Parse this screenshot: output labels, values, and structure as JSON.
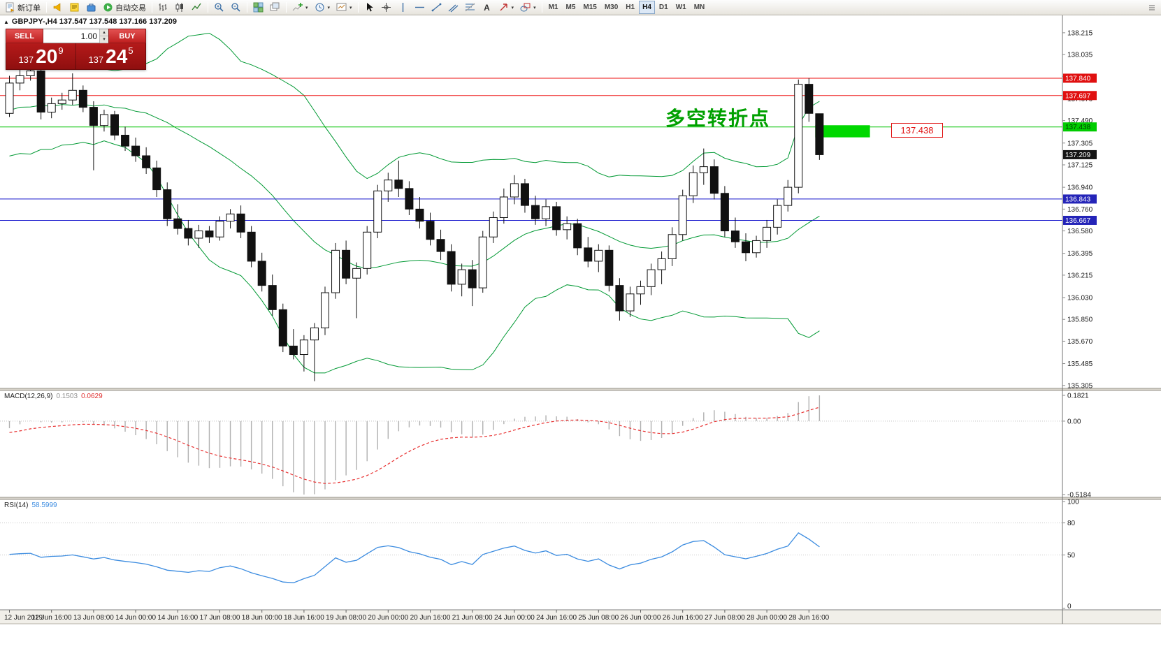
{
  "toolbar": {
    "new_order": "新订单",
    "autotrading": "自动交易",
    "icon_buttons": [
      {
        "name": "alerts-button",
        "icon": "megaphone-icon"
      },
      {
        "name": "metaeditor-button",
        "icon": "editor-icon"
      },
      {
        "name": "market-button",
        "icon": "market-icon"
      }
    ],
    "chart_buttons": [
      {
        "name": "bar-chart-button",
        "icon": "bar-chart-icon"
      },
      {
        "name": "candlestick-chart-button",
        "icon": "candles-icon"
      },
      {
        "name": "line-chart-button",
        "icon": "line-chart-icon"
      }
    ],
    "zoom_buttons": [
      {
        "name": "zoom-in-button",
        "icon": "zoom-in-icon"
      },
      {
        "name": "zoom-out-button",
        "icon": "zoom-out-icon"
      }
    ],
    "window_buttons": [
      {
        "name": "tile-windows-button",
        "icon": "tile-windows-icon"
      },
      {
        "name": "cascade-windows-button",
        "icon": "arrange-icon"
      }
    ],
    "insert_buttons": [
      {
        "name": "indicators-button",
        "icon": "indicators-icon",
        "caret": true
      },
      {
        "name": "periods-button",
        "icon": "clock-icon",
        "caret": true
      },
      {
        "name": "templates-button",
        "icon": "template-icon",
        "caret": true
      }
    ],
    "draw_buttons": [
      {
        "name": "cursor-button",
        "icon": "cursor-icon"
      },
      {
        "name": "crosshair-button",
        "icon": "crosshair-icon"
      },
      {
        "name": "vertical-line-button",
        "icon": "vline-icon"
      },
      {
        "name": "horizontal-line-button",
        "icon": "hline-icon"
      },
      {
        "name": "trendline-button",
        "icon": "trendline-icon"
      },
      {
        "name": "channel-button",
        "icon": "channel-icon"
      },
      {
        "name": "fibonacci-button",
        "icon": "fibo-icon"
      },
      {
        "name": "text-button",
        "icon": "text-icon"
      },
      {
        "name": "arrows-button",
        "icon": "arrow-icon",
        "caret": true
      },
      {
        "name": "shapes-button",
        "icon": "shapes-icon",
        "caret": true
      }
    ],
    "timeframes": [
      "M1",
      "M5",
      "M15",
      "M30",
      "H1",
      "H4",
      "D1",
      "W1",
      "MN"
    ],
    "active_timeframe": "H4"
  },
  "chart": {
    "symbol_line": "GBPJPY-,H4 137.547 137.548 137.166 137.209",
    "order_panel": {
      "sell_label": "SELL",
      "buy_label": "BUY",
      "volume": "1.00",
      "sell_price_big": "137",
      "sell_price_main": "20",
      "sell_price_sup": "9",
      "buy_price_big": "137",
      "buy_price_main": "24",
      "buy_price_sup": "5"
    },
    "annotation_text": "多空转折点",
    "price_callout": "137.438",
    "current_price_tag": {
      "text": "137.209",
      "price": 137.209,
      "bg": "#141414",
      "fg": "#ffffff"
    },
    "hlines": [
      {
        "price": 137.84,
        "text": "137.840",
        "color": "#ee1111",
        "tag_bg": "#e01010",
        "tag_fg": "#ffffff"
      },
      {
        "price": 137.697,
        "text": "137.697",
        "color": "#ee1111",
        "tag_bg": "#e01010",
        "tag_fg": "#ffffff"
      },
      {
        "price": 137.438,
        "text": "137.438",
        "color": "#00c400",
        "tag_bg": "#00cc00",
        "tag_fg": "#004000"
      },
      {
        "price": 136.843,
        "text": "136.843",
        "color": "#1515cc",
        "tag_bg": "#2424b8",
        "tag_fg": "#ffffff"
      },
      {
        "price": 136.667,
        "text": "136.667",
        "color": "#1515cc",
        "tag_bg": "#2424b8",
        "tag_fg": "#ffffff"
      }
    ],
    "rectangle": {
      "price_top": 137.452,
      "price_bottom": 137.352,
      "x_start_candle": 76.6,
      "x_end_candle": 81.8,
      "color": "#00d800"
    },
    "axis_prices": [
      "138.215",
      "138.035",
      "137.855",
      "137.670",
      "137.490",
      "137.305",
      "137.125",
      "136.940",
      "136.760",
      "136.580",
      "136.395",
      "136.215",
      "136.030",
      "135.850",
      "135.670",
      "135.485",
      "135.305"
    ]
  },
  "macd": {
    "name": "MACD(12,26,9)",
    "value_main": "0.1503",
    "value_signal": "0.0629",
    "axis_labels": [
      "0.1821",
      "0.00",
      "-0.5184"
    ],
    "axis_max": 0.1821,
    "axis_min": -0.5184,
    "histogram_color": "#b0b0b0",
    "signal_color": "#e83030"
  },
  "rsi": {
    "name": "RSI(14)",
    "value": "58.5999",
    "axis_labels": [
      "100",
      "80",
      "50",
      "0"
    ],
    "levels": [
      80,
      50
    ],
    "line_color": "#3c8ce0"
  },
  "chart_data": {
    "type": "candlestick",
    "symbol": "GBPJPY-",
    "timeframe": "H4",
    "price_view_max": 138.37,
    "price_view_min": 135.28,
    "candles_per_label": 4,
    "bollinger": {
      "period": 20,
      "deviation": 2,
      "color": "#009933"
    },
    "time_labels": [
      "12 Jun 2019",
      "12 Jun 16:00",
      "13 Jun 08:00",
      "14 Jun 00:00",
      "14 Jun 16:00",
      "17 Jun 08:00",
      "18 Jun 00:00",
      "18 Jun 16:00",
      "19 Jun 08:00",
      "20 Jun 00:00",
      "20 Jun 16:00",
      "21 Jun 08:00",
      "24 Jun 00:00",
      "24 Jun 16:00",
      "25 Jun 08:00",
      "26 Jun 00:00",
      "26 Jun 16:00",
      "27 Jun 08:00",
      "28 Jun 00:00",
      "28 Jun 16:00"
    ],
    "prehistory_closes": [
      138.0,
      137.3,
      137.95,
      137.25,
      137.9,
      137.3,
      137.95,
      137.35,
      137.85,
      137.3,
      137.8,
      137.35,
      137.85,
      137.45,
      137.75,
      137.35,
      137.8,
      137.4,
      137.7,
      137.4,
      137.7,
      137.45,
      137.65,
      137.45,
      137.6,
      137.5
    ],
    "ohlc": [
      [
        137.55,
        137.86,
        137.52,
        137.8
      ],
      [
        137.8,
        137.92,
        137.74,
        137.86
      ],
      [
        137.86,
        137.97,
        137.82,
        137.9
      ],
      [
        137.9,
        137.93,
        137.5,
        137.56
      ],
      [
        137.56,
        137.68,
        137.51,
        137.63
      ],
      [
        137.63,
        137.72,
        137.58,
        137.66
      ],
      [
        137.66,
        137.88,
        137.62,
        137.74
      ],
      [
        137.74,
        137.78,
        137.56,
        137.6
      ],
      [
        137.6,
        137.65,
        137.08,
        137.45
      ],
      [
        137.45,
        137.58,
        137.4,
        137.54
      ],
      [
        137.54,
        137.57,
        137.33,
        137.37
      ],
      [
        137.37,
        137.44,
        137.24,
        137.28
      ],
      [
        137.28,
        137.35,
        137.15,
        137.2
      ],
      [
        137.2,
        137.27,
        137.05,
        137.1
      ],
      [
        137.1,
        137.16,
        136.86,
        136.92
      ],
      [
        136.92,
        136.98,
        136.62,
        136.68
      ],
      [
        136.68,
        136.8,
        136.55,
        136.6
      ],
      [
        136.6,
        136.67,
        136.46,
        136.52
      ],
      [
        136.52,
        136.63,
        136.44,
        136.58
      ],
      [
        136.58,
        136.62,
        136.48,
        136.53
      ],
      [
        136.53,
        136.7,
        136.5,
        136.66
      ],
      [
        136.66,
        136.76,
        136.6,
        136.72
      ],
      [
        136.72,
        136.79,
        136.52,
        136.57
      ],
      [
        136.57,
        136.62,
        136.28,
        136.33
      ],
      [
        136.33,
        136.4,
        136.08,
        136.13
      ],
      [
        136.13,
        136.22,
        135.88,
        135.93
      ],
      [
        135.93,
        135.98,
        135.58,
        135.63
      ],
      [
        135.63,
        135.77,
        135.52,
        135.56
      ],
      [
        135.56,
        135.72,
        135.42,
        135.68
      ],
      [
        135.68,
        135.82,
        135.34,
        135.78
      ],
      [
        135.78,
        136.12,
        135.72,
        136.07
      ],
      [
        136.07,
        136.48,
        136.02,
        136.42
      ],
      [
        136.42,
        136.5,
        136.14,
        136.19
      ],
      [
        136.19,
        136.32,
        135.86,
        136.27
      ],
      [
        136.27,
        136.62,
        136.22,
        136.57
      ],
      [
        136.57,
        136.96,
        136.52,
        136.91
      ],
      [
        136.91,
        137.06,
        136.82,
        137.0
      ],
      [
        137.0,
        137.16,
        136.86,
        136.93
      ],
      [
        136.93,
        136.99,
        136.71,
        136.76
      ],
      [
        136.76,
        136.86,
        136.6,
        136.66
      ],
      [
        136.66,
        136.73,
        136.46,
        136.51
      ],
      [
        136.51,
        136.59,
        136.34,
        136.41
      ],
      [
        136.41,
        136.47,
        136.08,
        136.14
      ],
      [
        136.14,
        136.31,
        136.04,
        136.26
      ],
      [
        136.26,
        136.34,
        135.96,
        136.11
      ],
      [
        136.11,
        136.58,
        136.07,
        136.53
      ],
      [
        136.53,
        136.74,
        136.48,
        136.69
      ],
      [
        136.69,
        136.93,
        136.64,
        136.86
      ],
      [
        136.86,
        137.04,
        136.8,
        136.97
      ],
      [
        136.97,
        137.01,
        136.73,
        136.79
      ],
      [
        136.79,
        136.87,
        136.63,
        136.68
      ],
      [
        136.68,
        136.84,
        136.62,
        136.78
      ],
      [
        136.78,
        136.82,
        136.54,
        136.59
      ],
      [
        136.59,
        136.7,
        136.51,
        136.64
      ],
      [
        136.64,
        136.68,
        136.38,
        136.44
      ],
      [
        136.44,
        136.53,
        136.28,
        136.33
      ],
      [
        136.33,
        136.47,
        136.24,
        136.42
      ],
      [
        136.42,
        136.46,
        136.08,
        136.13
      ],
      [
        136.13,
        136.19,
        135.84,
        135.92
      ],
      [
        135.92,
        136.12,
        135.87,
        136.06
      ],
      [
        136.06,
        136.17,
        135.97,
        136.12
      ],
      [
        136.12,
        136.31,
        136.05,
        136.26
      ],
      [
        136.26,
        136.41,
        136.14,
        136.35
      ],
      [
        136.35,
        136.61,
        136.29,
        136.55
      ],
      [
        136.55,
        136.92,
        136.5,
        136.87
      ],
      [
        136.87,
        137.12,
        136.81,
        137.06
      ],
      [
        137.06,
        137.26,
        136.96,
        137.11
      ],
      [
        137.11,
        137.17,
        136.84,
        136.89
      ],
      [
        136.89,
        136.95,
        136.53,
        136.58
      ],
      [
        136.58,
        136.69,
        136.44,
        136.49
      ],
      [
        136.49,
        136.56,
        136.33,
        136.4
      ],
      [
        136.4,
        136.54,
        136.36,
        136.5
      ],
      [
        136.5,
        136.67,
        136.44,
        136.61
      ],
      [
        136.61,
        136.84,
        136.55,
        136.79
      ],
      [
        136.79,
        137.0,
        136.74,
        136.94
      ],
      [
        136.94,
        137.83,
        136.89,
        137.79
      ],
      [
        137.79,
        137.84,
        137.48,
        137.55
      ],
      [
        137.547,
        137.548,
        137.166,
        137.209
      ]
    ]
  }
}
